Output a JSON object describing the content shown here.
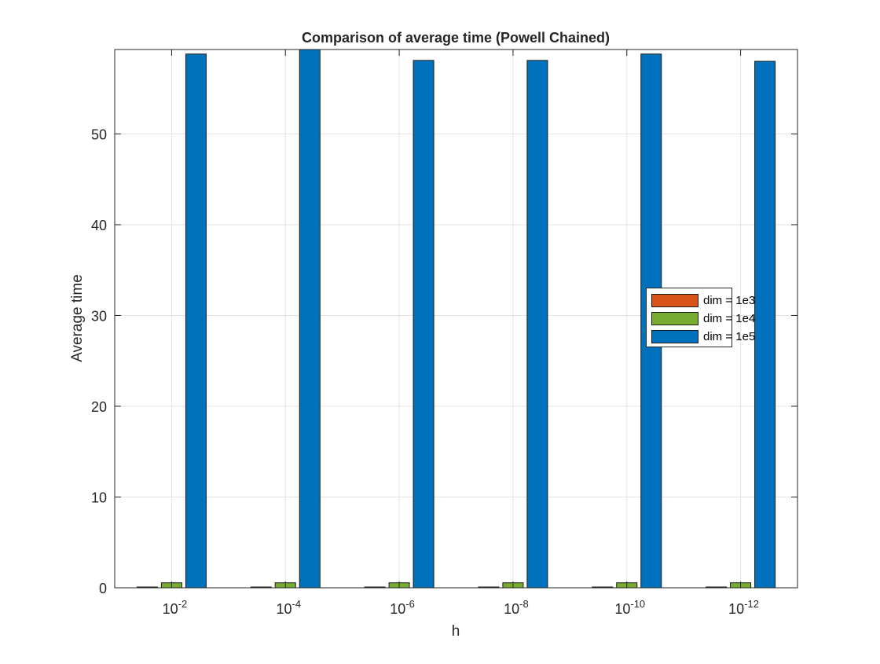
{
  "chart_data": {
    "type": "bar",
    "title": "Comparison of average time (Powell Chained)",
    "xlabel": "h",
    "ylabel": "Average time",
    "categories": [
      {
        "base": "10",
        "exp": "-2"
      },
      {
        "base": "10",
        "exp": "-4"
      },
      {
        "base": "10",
        "exp": "-6"
      },
      {
        "base": "10",
        "exp": "-8"
      },
      {
        "base": "10",
        "exp": "-10"
      },
      {
        "base": "10",
        "exp": "-12"
      }
    ],
    "series": [
      {
        "name": "dim = 1e3",
        "color": "#D95319",
        "values": [
          0.06,
          0.06,
          0.06,
          0.06,
          0.06,
          0.06
        ]
      },
      {
        "name": "dim = 1e4",
        "color": "#77AC30",
        "values": [
          0.55,
          0.55,
          0.55,
          0.55,
          0.55,
          0.55
        ]
      },
      {
        "name": "dim = 1e5",
        "color": "#0072BD",
        "values": [
          58.8,
          59.3,
          58.1,
          58.1,
          58.8,
          58.0
        ]
      }
    ],
    "ylim": [
      0,
      59.3
    ],
    "yticks": [
      "0",
      "10",
      "20",
      "30",
      "40",
      "50"
    ],
    "grid": true,
    "legend_position": "right"
  }
}
